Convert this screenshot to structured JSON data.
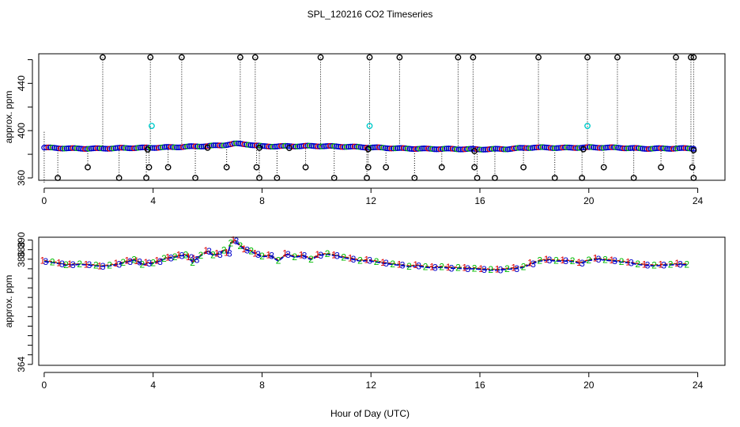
{
  "title": "SPL_120216  CO2 Timeseries",
  "xlabel": "Hour of Day (UTC)",
  "colors": {
    "series1": "#dd0000",
    "series2": "#00bb00",
    "series3": "#0000cc",
    "cyan": "#00cccc",
    "black": "#000000"
  },
  "chart_data": [
    {
      "type": "scatter",
      "name": "top-panel",
      "ylabel": "approx. ppm",
      "xlim": [
        -0.2,
        25
      ],
      "ylim": [
        358,
        465
      ],
      "xticks": [
        "0",
        "4",
        "8",
        "12",
        "16",
        "20",
        "24"
      ],
      "yticks": [
        "360",
        "400",
        "440"
      ],
      "baseline": {
        "x": [
          0,
          1,
          2,
          3,
          4,
          5,
          6,
          6.5,
          7,
          7.5,
          8,
          9,
          10,
          11,
          12,
          13,
          14,
          15,
          16,
          17,
          18,
          19,
          20,
          21,
          22,
          23,
          23.8
        ],
        "y": [
          385.6,
          384.9,
          384.8,
          385.3,
          385.6,
          386.2,
          387.0,
          387.5,
          389.0,
          388.3,
          386.7,
          386.8,
          387.0,
          386.5,
          385.8,
          385.0,
          384.6,
          384.5,
          384.2,
          384.5,
          385.8,
          385.4,
          385.8,
          385.6,
          384.8,
          384.9,
          385.0
        ]
      },
      "spikes_high": [
        2.15,
        3.9,
        5.05,
        7.2,
        7.75,
        10.15,
        11.95,
        13.05,
        15.2,
        15.75,
        18.15,
        19.95,
        21.05,
        23.2,
        23.75,
        23.85
      ],
      "spikes_low": [
        0.5,
        2.75,
        3.75,
        5.55,
        7.9,
        8.55,
        10.65,
        11.85,
        13.6,
        15.9,
        16.55,
        18.75,
        19.75,
        21.65,
        23.85
      ],
      "mid_low": [
        1.6,
        3.85,
        4.55,
        6.7,
        7.8,
        9.6,
        11.9,
        12.55,
        14.6,
        15.8,
        17.6,
        20.55,
        22.65,
        23.8
      ],
      "cyan_points": {
        "x": [
          3.95,
          11.95,
          19.95
        ],
        "y": [
          404,
          404,
          404
        ]
      },
      "high_value": 462,
      "low_value": 360,
      "mid_low_value": 369
    },
    {
      "type": "line",
      "name": "bottom-panel",
      "ylabel": "approx. ppm",
      "xlim": [
        -0.2,
        25
      ],
      "ylim": [
        363.8,
        390.6
      ],
      "xticks": [
        "0",
        "4",
        "8",
        "12",
        "16",
        "20",
        "24"
      ],
      "yticks": [
        "364",
        "366",
        "368",
        "370",
        "372",
        "374",
        "376",
        "378",
        "380",
        "382",
        "384",
        "386",
        "388",
        "390"
      ],
      "ytick_labels": [
        "364",
        "",
        "",
        "",
        "",
        "",
        "",
        "",
        "",
        "",
        "",
        "386",
        "388",
        "390"
      ],
      "x": [
        0,
        0.3,
        0.6,
        0.8,
        1.0,
        1.3,
        1.6,
        1.9,
        2.1,
        2.4,
        2.7,
        2.9,
        3.1,
        3.3,
        3.45,
        3.6,
        3.8,
        4.0,
        4.2,
        4.4,
        4.6,
        4.8,
        5.0,
        5.2,
        5.35,
        5.45,
        5.55,
        5.75,
        6.0,
        6.2,
        6.4,
        6.6,
        6.75,
        6.85,
        7.0,
        7.2,
        7.4,
        7.6,
        7.8,
        8.0,
        8.3,
        8.6,
        8.9,
        9.2,
        9.5,
        9.8,
        10.1,
        10.4,
        10.7,
        11.0,
        11.3,
        11.6,
        11.9,
        12.2,
        12.5,
        12.8,
        13.1,
        13.4,
        13.7,
        14.0,
        14.3,
        14.6,
        14.9,
        15.2,
        15.5,
        15.8,
        16.1,
        16.4,
        16.7,
        17.0,
        17.3,
        17.6,
        17.9,
        18.2,
        18.5,
        18.8,
        19.1,
        19.4,
        19.7,
        20.0,
        20.3,
        20.6,
        20.9,
        21.2,
        21.5,
        21.8,
        22.1,
        22.4,
        22.7,
        23.0,
        23.3,
        23.6
      ],
      "series": [
        {
          "name": "1",
          "color": "#dd0000",
          "values": [
            385.7,
            385.5,
            385.2,
            384.9,
            385.0,
            385.0,
            384.9,
            384.8,
            384.6,
            384.8,
            385.1,
            385.4,
            385.7,
            386.0,
            385.6,
            385.0,
            385.3,
            385.3,
            385.7,
            386.2,
            386.4,
            386.6,
            386.9,
            387.0,
            386.5,
            385.4,
            386.1,
            386.9,
            387.8,
            387.0,
            387.2,
            388.0,
            387.4,
            389.5,
            390.0,
            388.9,
            388.1,
            387.8,
            387.2,
            386.7,
            386.9,
            385.8,
            387.2,
            386.6,
            386.9,
            386.1,
            387.0,
            387.2,
            386.9,
            386.5,
            386.2,
            385.8,
            385.9,
            385.6,
            385.3,
            385.1,
            384.9,
            384.6,
            384.8,
            384.5,
            384.4,
            384.5,
            384.3,
            384.3,
            384.2,
            384.2,
            384.0,
            383.9,
            383.9,
            384.1,
            384.2,
            384.5,
            385.2,
            385.8,
            386.0,
            385.8,
            385.8,
            385.7,
            385.3,
            385.9,
            386.2,
            386.0,
            385.8,
            385.6,
            385.4,
            385.1,
            384.9,
            384.8,
            384.9,
            385.0,
            385.1,
            385.0
          ]
        },
        {
          "name": "2",
          "color": "#00bb00",
          "values": [
            385.6,
            385.4,
            385.1,
            384.8,
            384.9,
            385.0,
            384.9,
            384.7,
            384.6,
            384.7,
            385.0,
            385.3,
            385.6,
            385.9,
            385.5,
            384.9,
            385.2,
            385.2,
            385.6,
            386.1,
            386.3,
            386.5,
            386.8,
            386.9,
            386.4,
            385.3,
            386.0,
            386.8,
            387.7,
            386.9,
            387.1,
            387.9,
            387.3,
            389.4,
            389.9,
            388.8,
            388.0,
            387.7,
            387.1,
            386.6,
            386.8,
            385.7,
            387.1,
            386.5,
            386.8,
            386.0,
            386.9,
            387.1,
            386.8,
            386.4,
            386.1,
            385.7,
            385.8,
            385.5,
            385.2,
            385.0,
            384.8,
            384.5,
            384.7,
            384.4,
            384.3,
            384.4,
            384.2,
            384.2,
            384.1,
            384.1,
            383.9,
            383.8,
            383.8,
            384.0,
            384.1,
            384.4,
            385.1,
            385.7,
            385.9,
            385.7,
            385.7,
            385.6,
            385.2,
            385.8,
            386.1,
            385.9,
            385.7,
            385.5,
            385.3,
            385.0,
            384.8,
            384.7,
            384.8,
            384.9,
            385.0,
            384.9
          ]
        },
        {
          "name": "3",
          "color": "#0000cc",
          "values": [
            385.5,
            385.3,
            385.0,
            384.7,
            384.8,
            384.9,
            384.8,
            384.6,
            384.5,
            384.6,
            384.9,
            385.2,
            385.5,
            385.8,
            385.4,
            384.8,
            385.1,
            385.1,
            385.5,
            386.0,
            386.2,
            386.4,
            386.7,
            386.8,
            386.3,
            385.2,
            385.9,
            386.7,
            387.6,
            386.8,
            387.0,
            387.8,
            387.2,
            389.3,
            389.8,
            388.7,
            387.9,
            387.6,
            387.0,
            386.5,
            386.7,
            385.6,
            387.0,
            386.4,
            386.7,
            385.9,
            386.8,
            387.0,
            386.7,
            386.3,
            386.0,
            385.6,
            385.7,
            385.4,
            385.1,
            384.9,
            384.7,
            384.4,
            384.6,
            384.3,
            384.2,
            384.3,
            384.1,
            384.1,
            384.0,
            384.0,
            383.8,
            383.7,
            383.7,
            383.9,
            384.0,
            384.3,
            385.0,
            385.6,
            385.8,
            385.6,
            385.6,
            385.5,
            385.1,
            385.7,
            386.0,
            385.8,
            385.6,
            385.4,
            385.2,
            384.9,
            384.7,
            384.6,
            384.7,
            384.8,
            384.9,
            384.8
          ]
        }
      ]
    }
  ]
}
